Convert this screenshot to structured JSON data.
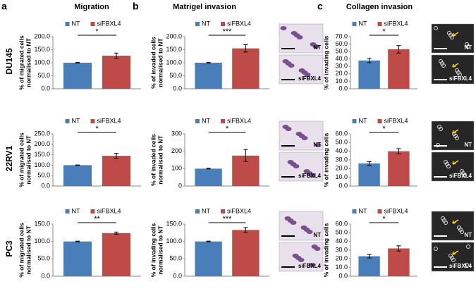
{
  "panels": [
    {
      "letter": "a",
      "title": "Migration"
    },
    {
      "letter": "b",
      "title": "Matrigel invasion"
    },
    {
      "letter": "c",
      "title": "Collagen invasion"
    }
  ],
  "cell_lines": [
    "DU145",
    "22RV1",
    "PC3"
  ],
  "micrograph_labels": [
    "NT",
    "siFBXL4"
  ],
  "chart_data": [
    {
      "type": "bar",
      "y_label": [
        "% of migrated cells",
        "normalised to NT"
      ],
      "significance": "*",
      "ylim": [
        0,
        200
      ],
      "yticks": [
        {
          "value": 0,
          "label": "0.0"
        },
        {
          "value": 50,
          "label": "50.0"
        },
        {
          "value": 100,
          "label": "100.0"
        },
        {
          "value": 150,
          "label": "150.0"
        },
        {
          "value": 200,
          "label": "200.0"
        }
      ],
      "series": [
        {
          "name": "NT",
          "color": "#4a7ebb",
          "values": [
            100
          ],
          "errors": [
            1
          ]
        },
        {
          "name": "siFBXL4",
          "color": "#be4b48",
          "values": [
            127
          ],
          "errors": [
            10
          ]
        }
      ]
    },
    {
      "type": "bar",
      "y_label": [
        "% of invaded cells",
        "normalised to NT"
      ],
      "significance": "***",
      "ylim": [
        0,
        200
      ],
      "yticks": [
        {
          "value": 0,
          "label": "0.0"
        },
        {
          "value": 50,
          "label": "50.0"
        },
        {
          "value": 100,
          "label": "100.0"
        },
        {
          "value": 150,
          "label": "150.0"
        },
        {
          "value": 200,
          "label": "200.0"
        }
      ],
      "series": [
        {
          "name": "NT",
          "color": "#4a7ebb",
          "values": [
            100
          ],
          "errors": [
            1
          ]
        },
        {
          "name": "siFBXL4",
          "color": "#be4b48",
          "values": [
            155
          ],
          "errors": [
            14
          ]
        }
      ]
    },
    {
      "type": "bar",
      "y_label": [
        "% of invading cells"
      ],
      "significance": "*",
      "ylim": [
        0,
        70
      ],
      "yticks": [
        {
          "value": 0,
          "label": "0.0"
        },
        {
          "value": 10,
          "label": "10.0"
        },
        {
          "value": 20,
          "label": "20.0"
        },
        {
          "value": 30,
          "label": "30.0"
        },
        {
          "value": 40,
          "label": "40.0"
        },
        {
          "value": 50,
          "label": "50.0"
        },
        {
          "value": 60,
          "label": "60.0"
        },
        {
          "value": 70,
          "label": "70.0"
        }
      ],
      "series": [
        {
          "name": "NT",
          "color": "#4a7ebb",
          "values": [
            38
          ],
          "errors": [
            3
          ]
        },
        {
          "name": "siFBXL4",
          "color": "#be4b48",
          "values": [
            53
          ],
          "errors": [
            5
          ]
        }
      ]
    },
    {
      "type": "bar",
      "y_label": [
        "% of migrated cells",
        "normalised to NT"
      ],
      "significance": "*",
      "ylim": [
        0,
        250
      ],
      "yticks": [
        {
          "value": 0,
          "label": "0.0"
        },
        {
          "value": 50,
          "label": "50.0"
        },
        {
          "value": 100,
          "label": "100.0"
        },
        {
          "value": 150,
          "label": "150.0"
        },
        {
          "value": 200,
          "label": "200.0"
        },
        {
          "value": 250,
          "label": "250.0"
        }
      ],
      "series": [
        {
          "name": "NT",
          "color": "#4a7ebb",
          "values": [
            100
          ],
          "errors": [
            1
          ]
        },
        {
          "name": "siFBXL4",
          "color": "#be4b48",
          "values": [
            145
          ],
          "errors": [
            12
          ]
        }
      ]
    },
    {
      "type": "bar",
      "y_label": [
        "% of invaded cells",
        "normalised to NT"
      ],
      "significance": "*",
      "ylim": [
        0,
        300
      ],
      "yticks": [
        0,
        100,
        200,
        300
      ],
      "series": [
        {
          "name": "NT",
          "color": "#4a7ebb",
          "values": [
            100
          ],
          "errors": [
            2
          ]
        },
        {
          "name": "siFBXL4",
          "color": "#be4b48",
          "values": [
            175
          ],
          "errors": [
            35
          ]
        }
      ]
    },
    {
      "type": "bar",
      "y_label": [
        "% of invading cells"
      ],
      "significance": "*",
      "ylim": [
        0,
        60
      ],
      "yticks": [
        {
          "value": 0,
          "label": "0.0"
        },
        {
          "value": 10,
          "label": "10.0"
        },
        {
          "value": 20,
          "label": "20.0"
        },
        {
          "value": 30,
          "label": "30.0"
        },
        {
          "value": 40,
          "label": "40.0"
        },
        {
          "value": 50,
          "label": "50.0"
        },
        {
          "value": 60,
          "label": "60.0"
        }
      ],
      "series": [
        {
          "name": "NT",
          "color": "#4a7ebb",
          "values": [
            26
          ],
          "errors": [
            2
          ]
        },
        {
          "name": "siFBXL4",
          "color": "#be4b48",
          "values": [
            40
          ],
          "errors": [
            3
          ]
        }
      ]
    },
    {
      "type": "bar",
      "y_label": [
        "% of migrated cells",
        "normalised to NT"
      ],
      "significance": "**",
      "ylim": [
        0,
        150
      ],
      "yticks": [
        {
          "value": 0,
          "label": "0.0"
        },
        {
          "value": 50,
          "label": "50.0"
        },
        {
          "value": 100,
          "label": "100.0"
        },
        {
          "value": 150,
          "label": "150.0"
        }
      ],
      "series": [
        {
          "name": "NT",
          "color": "#4a7ebb",
          "values": [
            100
          ],
          "errors": [
            1
          ]
        },
        {
          "name": "siFBXL4",
          "color": "#be4b48",
          "values": [
            124
          ],
          "errors": [
            3
          ]
        }
      ]
    },
    {
      "type": "bar",
      "y_label": [
        "% of invading cells",
        "normalised to NT"
      ],
      "significance": "***",
      "ylim": [
        0,
        150
      ],
      "yticks": [
        {
          "value": 0,
          "label": "0.0"
        },
        {
          "value": 50,
          "label": "50.0"
        },
        {
          "value": 100,
          "label": "100.0"
        },
        {
          "value": 150,
          "label": "150.0"
        }
      ],
      "series": [
        {
          "name": "NT",
          "color": "#4a7ebb",
          "values": [
            100
          ],
          "errors": [
            1
          ]
        },
        {
          "name": "siFBXL4",
          "color": "#be4b48",
          "values": [
            133
          ],
          "errors": [
            7
          ]
        }
      ]
    },
    {
      "type": "bar",
      "y_label": [
        "% of invading cells"
      ],
      "significance": "*",
      "ylim": [
        0,
        60
      ],
      "yticks": [
        {
          "value": 0,
          "label": "0.0"
        },
        {
          "value": 10,
          "label": "10.0"
        },
        {
          "value": 20,
          "label": "20.0"
        },
        {
          "value": 30,
          "label": "30.0"
        },
        {
          "value": 40,
          "label": "40.0"
        },
        {
          "value": 50,
          "label": "50.0"
        },
        {
          "value": 60,
          "label": "60.0"
        }
      ],
      "series": [
        {
          "name": "NT",
          "color": "#4a7ebb",
          "values": [
            23
          ],
          "errors": [
            2
          ]
        },
        {
          "name": "siFBXL4",
          "color": "#be4b48",
          "values": [
            32
          ],
          "errors": [
            3
          ]
        }
      ]
    }
  ]
}
